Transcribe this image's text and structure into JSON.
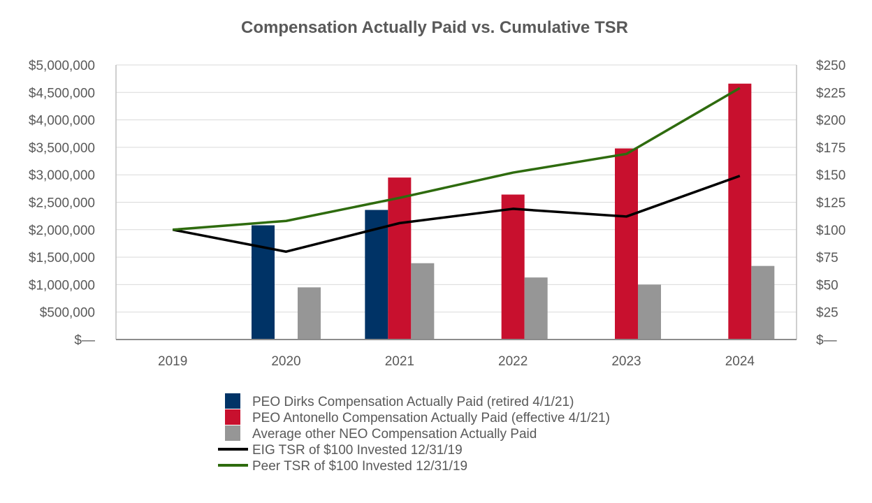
{
  "chart_data": {
    "type": "bar",
    "title": "Compensation Actually Paid vs. Cumulative TSR",
    "categories": [
      "2019",
      "2020",
      "2021",
      "2022",
      "2023",
      "2024"
    ],
    "left_axis": {
      "ylim": [
        0,
        5000000
      ],
      "tick_values": [
        0,
        500000,
        1000000,
        1500000,
        2000000,
        2500000,
        3000000,
        3500000,
        4000000,
        4500000,
        5000000
      ],
      "tick_labels": [
        "$—",
        "$500,000",
        "$1,000,000",
        "$1,500,000",
        "$2,000,000",
        "$2,500,000",
        "$3,000,000",
        "$3,500,000",
        "$4,000,000",
        "$4,500,000",
        "$5,000,000"
      ]
    },
    "right_axis": {
      "ylim": [
        0,
        250
      ],
      "tick_values": [
        0,
        25,
        50,
        75,
        100,
        125,
        150,
        175,
        200,
        225,
        250
      ],
      "tick_labels": [
        "$—",
        "$25",
        "$50",
        "$75",
        "$100",
        "$125",
        "$150",
        "$175",
        "$200",
        "$225",
        "$250"
      ]
    },
    "bar_series": [
      {
        "name": "PEO Dirks Compensation Actually Paid (retired 4/1/21)",
        "color": "#003366",
        "values": [
          null,
          2080000,
          2360000,
          null,
          null,
          null
        ]
      },
      {
        "name": "PEO Antonello Compensation Actually Paid (effective 4/1/21)",
        "color": "#C8102E",
        "values": [
          null,
          null,
          2950000,
          2640000,
          3480000,
          4660000
        ]
      },
      {
        "name": "Average other NEO Compensation Actually Paid",
        "color": "#969696",
        "values": [
          null,
          950000,
          1390000,
          1130000,
          1000000,
          1340000
        ]
      }
    ],
    "line_series": [
      {
        "name": "EIG TSR of $100 Invested 12/31/19",
        "color": "#000000",
        "axis": "right",
        "values": [
          100,
          80,
          106,
          119,
          112,
          149
        ]
      },
      {
        "name": "Peer TSR of $100 Invested 12/31/19",
        "color": "#2E6B0E",
        "axis": "right",
        "values": [
          100,
          108,
          129,
          152,
          169,
          229
        ]
      }
    ],
    "legend_position": "bottom-center",
    "grid": true
  }
}
